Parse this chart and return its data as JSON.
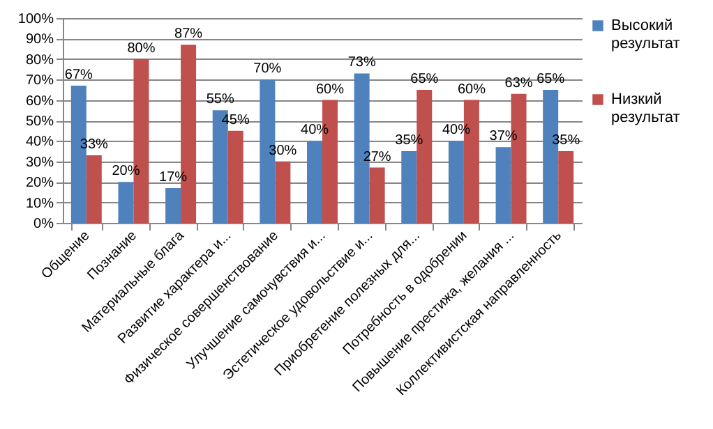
{
  "chart_data": {
    "type": "bar",
    "categories": [
      "Общение",
      "Познание",
      "Материальные блага",
      "Развитие характера и...",
      "Физическое совершенствование",
      "Улучшение самочувствия и...",
      "Эстетическое удовольствие и...",
      "Приобретение полезных для...",
      "Потребность в одобрении",
      "Повышение престижа, желания ...",
      "Коллективистская направленность"
    ],
    "series": [
      {
        "name": "Высокий результат",
        "color": "#4f81bd",
        "values": [
          67,
          20,
          17,
          55,
          70,
          40,
          73,
          35,
          40,
          37,
          65
        ],
        "value_labels": [
          "67%",
          "20%",
          "17%",
          "55%",
          "70%",
          "40%",
          "73%",
          "35%",
          "40%",
          "37%",
          "65%"
        ]
      },
      {
        "name": "Низкий результат",
        "color": "#c0504d",
        "values": [
          33,
          80,
          87,
          45,
          30,
          60,
          27,
          65,
          60,
          63,
          35
        ],
        "value_labels": [
          "33%",
          "80%",
          "87%",
          "45%",
          "30%",
          "60%",
          "27%",
          "65%",
          "60%",
          "63%",
          "35%"
        ]
      }
    ],
    "ylim": [
      0,
      100
    ],
    "yticks": [
      {
        "value": 0,
        "label": "0%"
      },
      {
        "value": 10,
        "label": "10%"
      },
      {
        "value": 20,
        "label": "20%"
      },
      {
        "value": 30,
        "label": "30%"
      },
      {
        "value": 40,
        "label": "40%"
      },
      {
        "value": 50,
        "label": "50%"
      },
      {
        "value": 60,
        "label": "60%"
      },
      {
        "value": 70,
        "label": "70%"
      },
      {
        "value": 80,
        "label": "80%"
      },
      {
        "value": 90,
        "label": "90%"
      },
      {
        "value": 100,
        "label": "100%"
      }
    ],
    "grid": "y",
    "legend": "right"
  }
}
